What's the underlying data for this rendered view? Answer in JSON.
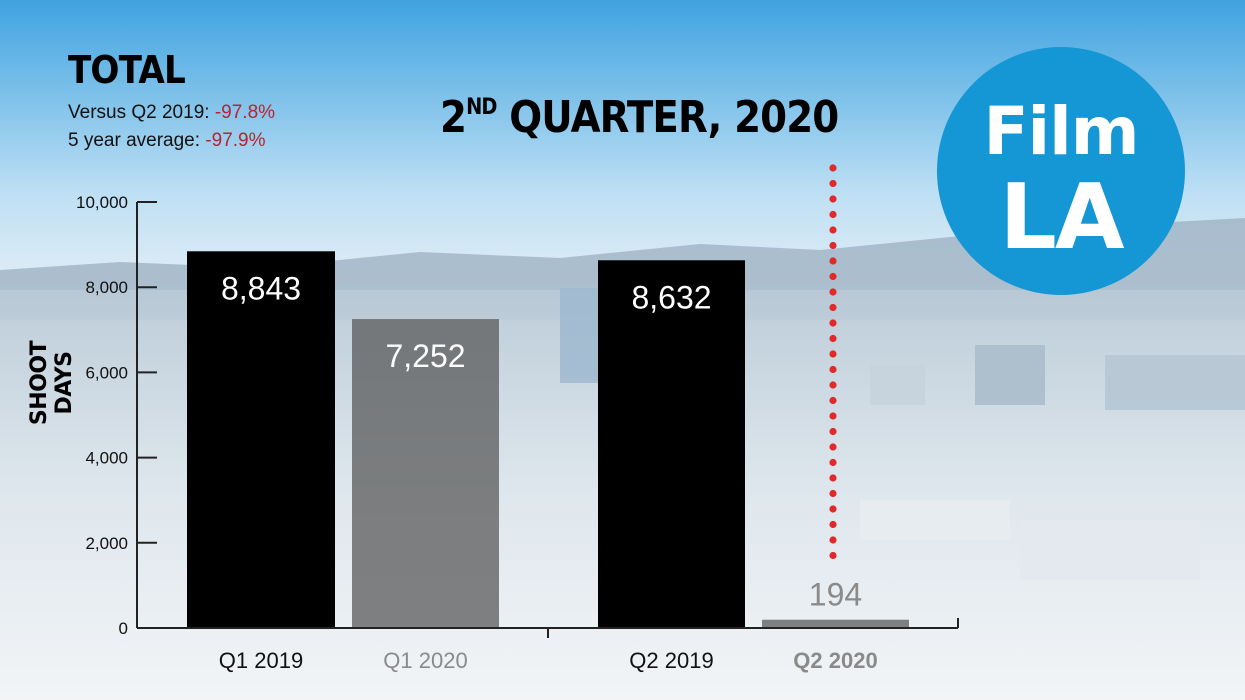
{
  "header": {
    "total_title": "TOTAL",
    "versus_label": "Versus Q2 2019: ",
    "versus_value": "-97.8%",
    "avg_label": "5 year average: ",
    "avg_value": "-97.9%",
    "quarter_main": "2",
    "quarter_sup": "ND",
    "quarter_rest": " QUARTER, 2020"
  },
  "logo": {
    "line1": "Film",
    "line2": "LA"
  },
  "colors": {
    "accent_red": "#b3262e",
    "logo_blue": "#1497d4",
    "dark_bar": "#000000"
  },
  "chart_data": {
    "type": "bar",
    "categories": [
      "Q1 2019",
      "Q1 2020",
      "Q2 2019",
      "Q2 2020"
    ],
    "values": [
      8843,
      7252,
      8632,
      194
    ],
    "value_labels": [
      "8,843",
      "7,252",
      "8,632",
      "194"
    ],
    "ylabel": "SHOOT DAYS",
    "ylim": [
      0,
      10000
    ],
    "yticks": [
      0,
      2000,
      4000,
      6000,
      8000,
      10000
    ],
    "ytick_labels": [
      "0",
      "2,000",
      "4,000",
      "6,000",
      "8,000",
      "10,000"
    ],
    "bar_styles": [
      "dark",
      "faded",
      "dark",
      "faded"
    ],
    "grid": false
  }
}
